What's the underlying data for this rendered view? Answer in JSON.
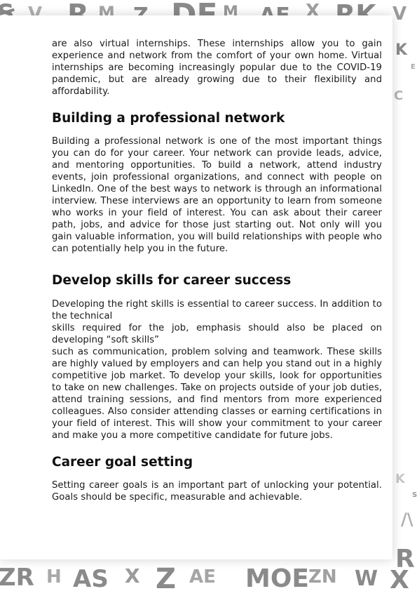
{
  "intro": {
    "paragraph": "are also virtual internships. These internships allow you to gain experience and network from the comfort of your own home. Virtual internships are becoming increasingly popular due to the COVID-19 pandemic, but are already growing due to their flexibility and affordability."
  },
  "network": {
    "heading": "Building a professional network",
    "paragraph": "Building a professional network is one of the most important things you can do for your career. Your network can provide leads, advice, and mentoring opportunities. To build a network, attend industry events, join professional organizations, and connect with people on LinkedIn. One of the best ways to network is through an informational interview. These interviews are an opportunity to learn from someone who works in your field of interest. You can ask about their career path, jobs, and advice for those just starting out. Not only will you gain valuable information, you will build relationships with people who can potentially help you in the future."
  },
  "skills": {
    "heading": "Develop skills for career success",
    "paragraph_1": "Developing the right skills is essential to career success. In addition to the technical",
    "paragraph_2": "skills required for the job, emphasis should also be placed on developing “soft skills”",
    "paragraph_3": "such as communication, problem solving and teamwork. These skills are highly valued by employers and can help you stand out in a highly competitive job market. To develop your skills, look for opportunities to take on new challenges. Take on projects outside of your job duties, attend training sessions, and find mentors from more experienced colleagues. Also consider attending classes or earning certifications in your field of interest. This will show your commitment to your career and make you a more competitive candidate for future jobs."
  },
  "goals": {
    "heading": "Career goal setting",
    "paragraph": "Setting career goals is an important part of unlocking your potential. Goals should be specific, measurable and achievable."
  },
  "decoration": {
    "pattern_color": "#8a8a8a",
    "pattern_letters": "EVDHRMKZAXSW"
  }
}
